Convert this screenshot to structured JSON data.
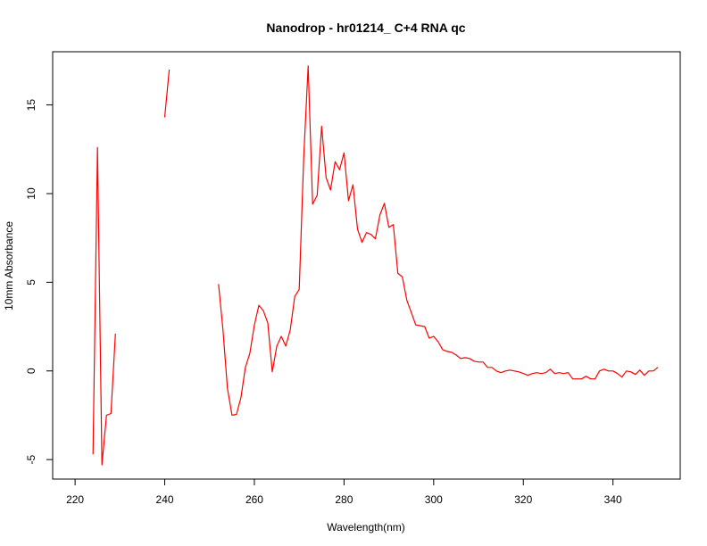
{
  "chart_data": {
    "type": "line",
    "title": "Nanodrop - hr01214_ C+4 RNA qc",
    "xlabel": "Wavelength(nm)",
    "ylabel": "10mm Absorbance",
    "xlim": [
      215,
      355
    ],
    "ylim": [
      -6.1,
      18.0
    ],
    "xticks": [
      220,
      240,
      260,
      280,
      300,
      320,
      340
    ],
    "yticks": [
      -5,
      0,
      5,
      10,
      15
    ],
    "grid": false,
    "line_color": "#ff0000",
    "series": [
      {
        "segments": [
          {
            "x": [
              224,
              225,
              226,
              227,
              228,
              229
            ],
            "y": [
              -4.7,
              12.6,
              -5.3,
              -2.5,
              -2.4,
              2.1
            ]
          },
          {
            "x": [
              240,
              241
            ],
            "y": [
              14.3,
              17.0
            ]
          },
          {
            "x": [
              252,
              253,
              254,
              255,
              256,
              257,
              258,
              259,
              260,
              261,
              262,
              263,
              264,
              265,
              266,
              267,
              268,
              269,
              270,
              271,
              272,
              273,
              274,
              275,
              276,
              277,
              278,
              279,
              280,
              281,
              282,
              283,
              284,
              285,
              286,
              287,
              288,
              289,
              290,
              291,
              292,
              293,
              294,
              295,
              296,
              297,
              298,
              299,
              300,
              301,
              302,
              303,
              304,
              305,
              306,
              307,
              308,
              309,
              310,
              311,
              312,
              313,
              314,
              315,
              316,
              317,
              318,
              319,
              320,
              321,
              322,
              323,
              324,
              325,
              326,
              327,
              328,
              329,
              330,
              331,
              332,
              333,
              334,
              335,
              336,
              337,
              338,
              339,
              340,
              341,
              342,
              343,
              344,
              345,
              346,
              347,
              348,
              349,
              350
            ],
            "y": [
              4.9,
              2.3,
              -1.0,
              -2.5,
              -2.45,
              -1.5,
              0.2,
              1.0,
              2.6,
              3.7,
              3.4,
              2.7,
              -0.05,
              1.4,
              1.95,
              1.4,
              2.3,
              4.2,
              4.6,
              12.0,
              17.2,
              9.4,
              9.9,
              13.8,
              10.9,
              10.2,
              11.8,
              11.35,
              12.3,
              9.6,
              10.5,
              8.0,
              7.25,
              7.8,
              7.7,
              7.45,
              8.8,
              9.45,
              8.1,
              8.25,
              5.5,
              5.3,
              4.0,
              3.3,
              2.6,
              2.55,
              2.5,
              1.85,
              1.95,
              1.65,
              1.2,
              1.1,
              1.05,
              0.9,
              0.7,
              0.75,
              0.7,
              0.55,
              0.5,
              0.5,
              0.2,
              0.2,
              0.0,
              -0.1,
              0.0,
              0.05,
              0.0,
              -0.05,
              -0.15,
              -0.25,
              -0.15,
              -0.1,
              -0.15,
              -0.1,
              0.1,
              -0.15,
              -0.1,
              -0.15,
              -0.1,
              -0.45,
              -0.45,
              -0.45,
              -0.3,
              -0.45,
              -0.45,
              0.0,
              0.1,
              0.0,
              0.0,
              -0.15,
              -0.35,
              0.0,
              -0.05,
              -0.2,
              0.05,
              -0.25,
              0.0,
              0.0,
              0.2
            ]
          }
        ]
      }
    ]
  }
}
